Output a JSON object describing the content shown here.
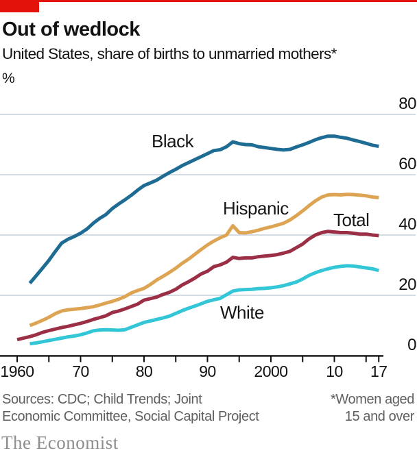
{
  "header": {
    "title": "Out of wedlock",
    "subtitle": "United States, share of births to unmarried mothers*",
    "unit_label": "%"
  },
  "footer": {
    "sources_line1": "Sources: CDC; Child Trends; Joint",
    "sources_line2": "Economic Committee, Social Capital Project",
    "footnote_line1": "*Women aged",
    "footnote_line2": "15 and over",
    "brand": "The Economist"
  },
  "chart_data": {
    "type": "line",
    "title": "Out of wedlock",
    "subtitle": "United States, share of births to unmarried mothers*",
    "ylabel": "%",
    "xlim": [
      1960,
      2017
    ],
    "ylim": [
      0,
      80
    ],
    "grid": "horizontal",
    "axis_label_side": "right",
    "y_ticks": [
      0,
      20,
      40,
      60,
      80
    ],
    "x_major_ticks": [
      {
        "year": 1960,
        "label": "1960"
      },
      {
        "year": 1970,
        "label": "70"
      },
      {
        "year": 1980,
        "label": "80"
      },
      {
        "year": 1990,
        "label": "90"
      },
      {
        "year": 2000,
        "label": "2000"
      },
      {
        "year": 2010,
        "label": "10"
      },
      {
        "year": 2017,
        "label": "17"
      }
    ],
    "x_minor_ticks": [
      1965,
      1975,
      1985,
      1995,
      2005,
      2015
    ],
    "series": [
      {
        "name": "Black",
        "color": "#1e6c94",
        "points": [
          [
            1962,
            24.0
          ],
          [
            1963,
            26.5
          ],
          [
            1964,
            29.0
          ],
          [
            1965,
            31.6
          ],
          [
            1966,
            34.5
          ],
          [
            1967,
            37.3
          ],
          [
            1968,
            38.6
          ],
          [
            1969,
            39.5
          ],
          [
            1970,
            40.6
          ],
          [
            1971,
            42.0
          ],
          [
            1972,
            43.9
          ],
          [
            1973,
            45.5
          ],
          [
            1974,
            46.8
          ],
          [
            1975,
            48.8
          ],
          [
            1976,
            50.3
          ],
          [
            1977,
            51.7
          ],
          [
            1978,
            53.2
          ],
          [
            1979,
            54.9
          ],
          [
            1980,
            56.4
          ],
          [
            1981,
            57.3
          ],
          [
            1982,
            58.2
          ],
          [
            1983,
            59.5
          ],
          [
            1984,
            60.7
          ],
          [
            1985,
            61.8
          ],
          [
            1986,
            63.0
          ],
          [
            1987,
            64.0
          ],
          [
            1988,
            65.0
          ],
          [
            1989,
            66.0
          ],
          [
            1990,
            67.0
          ],
          [
            1991,
            68.0
          ],
          [
            1992,
            68.3
          ],
          [
            1993,
            69.3
          ],
          [
            1994,
            70.9
          ],
          [
            1995,
            70.3
          ],
          [
            1996,
            70.0
          ],
          [
            1997,
            69.9
          ],
          [
            1998,
            69.3
          ],
          [
            1999,
            69.0
          ],
          [
            2000,
            68.7
          ],
          [
            2001,
            68.4
          ],
          [
            2002,
            68.2
          ],
          [
            2003,
            68.4
          ],
          [
            2004,
            69.2
          ],
          [
            2005,
            69.9
          ],
          [
            2006,
            70.7
          ],
          [
            2007,
            71.6
          ],
          [
            2008,
            72.3
          ],
          [
            2009,
            72.8
          ],
          [
            2010,
            72.8
          ],
          [
            2011,
            72.4
          ],
          [
            2012,
            72.1
          ],
          [
            2013,
            71.5
          ],
          [
            2014,
            71.0
          ],
          [
            2015,
            70.4
          ],
          [
            2016,
            69.8
          ],
          [
            2017,
            69.4
          ]
        ]
      },
      {
        "name": "Hispanic",
        "color": "#dda553",
        "points": [
          [
            1962,
            10.0
          ],
          [
            1963,
            10.8
          ],
          [
            1964,
            11.7
          ],
          [
            1965,
            12.7
          ],
          [
            1966,
            13.9
          ],
          [
            1967,
            14.8
          ],
          [
            1968,
            15.2
          ],
          [
            1969,
            15.4
          ],
          [
            1970,
            15.6
          ],
          [
            1971,
            15.9
          ],
          [
            1972,
            16.2
          ],
          [
            1973,
            16.8
          ],
          [
            1974,
            17.4
          ],
          [
            1975,
            18.0
          ],
          [
            1976,
            18.7
          ],
          [
            1977,
            19.6
          ],
          [
            1978,
            20.8
          ],
          [
            1979,
            21.6
          ],
          [
            1980,
            22.3
          ],
          [
            1981,
            23.6
          ],
          [
            1982,
            25.1
          ],
          [
            1983,
            26.3
          ],
          [
            1984,
            27.6
          ],
          [
            1985,
            29.0
          ],
          [
            1986,
            30.6
          ],
          [
            1987,
            32.0
          ],
          [
            1988,
            33.6
          ],
          [
            1989,
            35.2
          ],
          [
            1990,
            36.7
          ],
          [
            1991,
            38.0
          ],
          [
            1992,
            39.1
          ],
          [
            1993,
            40.0
          ],
          [
            1994,
            43.1
          ],
          [
            1995,
            40.8
          ],
          [
            1996,
            40.7
          ],
          [
            1997,
            41.1
          ],
          [
            1998,
            41.6
          ],
          [
            1999,
            42.2
          ],
          [
            2000,
            42.7
          ],
          [
            2001,
            43.3
          ],
          [
            2002,
            43.9
          ],
          [
            2003,
            45.0
          ],
          [
            2004,
            46.4
          ],
          [
            2005,
            48.0
          ],
          [
            2006,
            49.7
          ],
          [
            2007,
            51.3
          ],
          [
            2008,
            52.6
          ],
          [
            2009,
            53.3
          ],
          [
            2010,
            53.4
          ],
          [
            2011,
            53.3
          ],
          [
            2012,
            53.5
          ],
          [
            2013,
            53.4
          ],
          [
            2014,
            53.2
          ],
          [
            2015,
            53.0
          ],
          [
            2016,
            52.6
          ],
          [
            2017,
            52.4
          ]
        ]
      },
      {
        "name": "Total",
        "color": "#9a2f45",
        "points": [
          [
            1960,
            5.3
          ],
          [
            1961,
            5.8
          ],
          [
            1962,
            6.3
          ],
          [
            1963,
            6.9
          ],
          [
            1964,
            7.7
          ],
          [
            1965,
            8.3
          ],
          [
            1966,
            8.8
          ],
          [
            1967,
            9.3
          ],
          [
            1968,
            9.7
          ],
          [
            1969,
            10.2
          ],
          [
            1970,
            10.7
          ],
          [
            1971,
            11.3
          ],
          [
            1972,
            12.0
          ],
          [
            1973,
            12.6
          ],
          [
            1974,
            13.2
          ],
          [
            1975,
            14.3
          ],
          [
            1976,
            14.8
          ],
          [
            1977,
            15.5
          ],
          [
            1978,
            16.3
          ],
          [
            1979,
            17.1
          ],
          [
            1980,
            18.4
          ],
          [
            1981,
            18.9
          ],
          [
            1982,
            19.4
          ],
          [
            1983,
            20.3
          ],
          [
            1984,
            21.0
          ],
          [
            1985,
            22.0
          ],
          [
            1986,
            23.4
          ],
          [
            1987,
            24.5
          ],
          [
            1988,
            25.7
          ],
          [
            1989,
            27.1
          ],
          [
            1990,
            28.0
          ],
          [
            1991,
            29.5
          ],
          [
            1992,
            30.1
          ],
          [
            1993,
            31.0
          ],
          [
            1994,
            32.6
          ],
          [
            1995,
            32.2
          ],
          [
            1996,
            32.4
          ],
          [
            1997,
            32.4
          ],
          [
            1998,
            32.8
          ],
          [
            1999,
            33.0
          ],
          [
            2000,
            33.2
          ],
          [
            2001,
            33.5
          ],
          [
            2002,
            34.0
          ],
          [
            2003,
            34.6
          ],
          [
            2004,
            35.8
          ],
          [
            2005,
            37.0
          ],
          [
            2006,
            38.7
          ],
          [
            2007,
            40.0
          ],
          [
            2008,
            40.8
          ],
          [
            2009,
            41.2
          ],
          [
            2010,
            41.0
          ],
          [
            2011,
            40.8
          ],
          [
            2012,
            40.8
          ],
          [
            2013,
            40.6
          ],
          [
            2014,
            40.3
          ],
          [
            2015,
            40.3
          ],
          [
            2016,
            40.0
          ],
          [
            2017,
            39.8
          ]
        ]
      },
      {
        "name": "White",
        "color": "#32c6d6",
        "points": [
          [
            1962,
            3.9
          ],
          [
            1963,
            4.2
          ],
          [
            1964,
            4.6
          ],
          [
            1965,
            5.0
          ],
          [
            1966,
            5.4
          ],
          [
            1967,
            5.8
          ],
          [
            1968,
            6.2
          ],
          [
            1969,
            6.5
          ],
          [
            1970,
            6.9
          ],
          [
            1971,
            7.5
          ],
          [
            1972,
            8.2
          ],
          [
            1973,
            8.5
          ],
          [
            1974,
            8.6
          ],
          [
            1975,
            8.5
          ],
          [
            1976,
            8.4
          ],
          [
            1977,
            8.6
          ],
          [
            1978,
            9.4
          ],
          [
            1979,
            10.2
          ],
          [
            1980,
            11.0
          ],
          [
            1981,
            11.5
          ],
          [
            1982,
            12.0
          ],
          [
            1983,
            12.5
          ],
          [
            1984,
            13.1
          ],
          [
            1985,
            14.0
          ],
          [
            1986,
            14.9
          ],
          [
            1987,
            15.7
          ],
          [
            1988,
            16.4
          ],
          [
            1989,
            17.2
          ],
          [
            1990,
            18.0
          ],
          [
            1991,
            18.5
          ],
          [
            1992,
            19.0
          ],
          [
            1993,
            20.2
          ],
          [
            1994,
            21.4
          ],
          [
            1995,
            21.8
          ],
          [
            1996,
            21.9
          ],
          [
            1997,
            22.0
          ],
          [
            1998,
            22.2
          ],
          [
            1999,
            22.3
          ],
          [
            2000,
            22.5
          ],
          [
            2001,
            22.8
          ],
          [
            2002,
            23.2
          ],
          [
            2003,
            23.8
          ],
          [
            2004,
            24.4
          ],
          [
            2005,
            25.4
          ],
          [
            2006,
            26.6
          ],
          [
            2007,
            27.5
          ],
          [
            2008,
            28.2
          ],
          [
            2009,
            28.8
          ],
          [
            2010,
            29.3
          ],
          [
            2011,
            29.6
          ],
          [
            2012,
            29.8
          ],
          [
            2013,
            29.7
          ],
          [
            2014,
            29.4
          ],
          [
            2015,
            29.1
          ],
          [
            2016,
            28.8
          ],
          [
            2017,
            28.2
          ]
        ]
      }
    ]
  }
}
